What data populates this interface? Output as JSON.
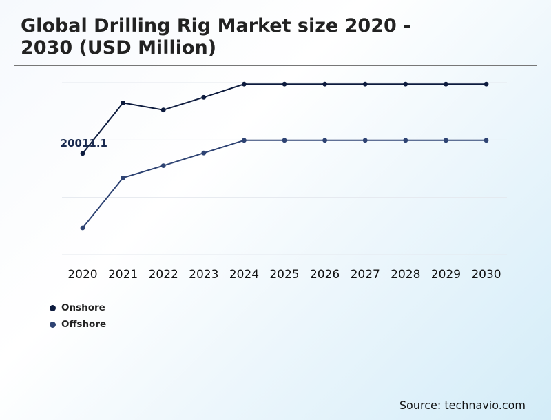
{
  "title": "Global Drilling Rig Market size 2020 - 2030 (USD Million)",
  "source": "Source: technavio.com",
  "chart_data": {
    "type": "line",
    "title": "Global Drilling Rig Market size 2020 - 2030 (USD Million)",
    "x": [
      "2020",
      "2021",
      "2022",
      "2023",
      "2024",
      "2025",
      "2026",
      "2027",
      "2028",
      "2029",
      "2030"
    ],
    "ylim": [
      0,
      34000
    ],
    "grid": true,
    "legend_position": "bottom-left",
    "series": [
      {
        "name": "Onshore",
        "color": "#0d1b3e",
        "values": [
          20011.1,
          30000,
          28600,
          31100,
          33700,
          33700,
          33700,
          33700,
          33700,
          33700,
          33700
        ]
      },
      {
        "name": "Offshore",
        "color": "#2e4373",
        "values": [
          5300,
          15200,
          17600,
          20100,
          22600,
          22600,
          22600,
          22600,
          22600,
          22600,
          22600
        ]
      }
    ],
    "annotations": [
      {
        "series": "Onshore",
        "x": "2020",
        "text": "20011.1"
      }
    ]
  }
}
